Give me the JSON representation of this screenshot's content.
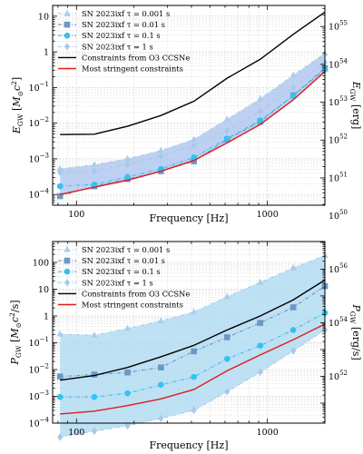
{
  "figure": {
    "background": "#ffffff",
    "colors": {
      "band": "#b9d3f0",
      "band_edge": "#8fb1e0",
      "c0001": "#aacdec",
      "c001": "#6c98c6",
      "c01": "#33c3ee",
      "c1": "#a7c9e8",
      "o3": "#000000",
      "most": "#dd1c1c"
    }
  },
  "chart_data": [
    {
      "type": "line",
      "panel": "top",
      "xlabel": "Frequency [Hz]",
      "ylabel_left": "E_GW [M⊙c²]",
      "ylabel_right": "E_GW [erg]",
      "xscale": "log",
      "yscale": "log",
      "xlim": [
        75,
        2000
      ],
      "ylim": [
        5e-05,
        20
      ],
      "ylim_right": [
        1.9e+50,
        3.6e+55
      ],
      "x_ticks": [
        100,
        1000
      ],
      "x_tick_labels": [
        "100",
        "1000"
      ],
      "y_ticks_left": [
        0.0001,
        0.001,
        0.01,
        0.1,
        1,
        10
      ],
      "y_tick_labels_left": [
        "10^-4",
        "10^-3",
        "10^-2",
        "10^-1",
        "1",
        "10"
      ],
      "y_ticks_right": [
        1e+50,
        1e+51,
        1e+52,
        1e+53,
        1e+54,
        1e+55
      ],
      "y_tick_labels_right": [
        "10^50",
        "10^51",
        "10^52",
        "10^53",
        "10^54",
        "10^55"
      ],
      "grid": true,
      "legend_position": "top-left",
      "x": [
        82,
        124,
        185,
        277,
        412,
        615,
        917,
        1366,
        2000
      ],
      "band": {
        "lower": [
          0.0001,
          0.00016,
          0.00025,
          0.00045,
          0.0009,
          0.0028,
          0.0092,
          0.045,
          0.28
        ],
        "upper": [
          0.00052,
          0.00068,
          0.001,
          0.0017,
          0.0035,
          0.0128,
          0.048,
          0.22,
          0.9
        ]
      },
      "series": [
        {
          "name": "SN 2023ixf τ = 0.001 s",
          "marker": "triangle",
          "values": [
            0.00052,
            0.00068,
            0.001,
            0.0017,
            0.0035,
            0.0128,
            0.048,
            0.22,
            0.9
          ]
        },
        {
          "name": "SN 2023ixf τ = 0.01 s",
          "marker": "square",
          "values": [
            9e-05,
            0.00017,
            0.00027,
            0.00045,
            0.00085,
            0.0035,
            0.011,
            0.06,
            0.35
          ]
        },
        {
          "name": "SN 2023ixf τ = 0.1 s",
          "marker": "circle",
          "values": [
            0.00017,
            0.00019,
            0.00031,
            0.00052,
            0.0011,
            0.0037,
            0.012,
            0.058,
            0.32
          ]
        },
        {
          "name": "SN 2023ixf τ = 1 s",
          "marker": "diamond",
          "values": [
            0.00042,
            0.00045,
            0.0007,
            0.0012,
            0.0024,
            0.0062,
            0.021,
            0.098,
            0.51
          ]
        },
        {
          "name": "Constraints from O3 CCSNe",
          "marker": "none",
          "values": [
            0.0048,
            0.0049,
            0.0082,
            0.0164,
            0.041,
            0.182,
            0.62,
            3.1,
            13
          ]
        },
        {
          "name": "Most stringent constraints",
          "marker": "none",
          "values": [
            0.0001,
            0.00016,
            0.00025,
            0.00045,
            0.0009,
            0.0028,
            0.0092,
            0.045,
            0.28
          ]
        }
      ]
    },
    {
      "type": "line",
      "panel": "bottom",
      "xlabel": "Frequency [Hz]",
      "ylabel_left": "P_GW [M⊙c²/s]",
      "ylabel_right": "P_GW [erg/s]",
      "xscale": "log",
      "yscale": "log",
      "xlim": [
        75,
        2000
      ],
      "ylim": [
        0.0001,
        600
      ],
      "ylim_right": [
        1.8e+50,
        1.07e+57
      ],
      "x_ticks": [
        100,
        1000
      ],
      "x_tick_labels": [
        "100",
        "1000"
      ],
      "y_ticks_left": [
        0.0001,
        0.001,
        0.01,
        0.1,
        1,
        10,
        100
      ],
      "y_tick_labels_left": [
        "10^-4",
        "10^-3",
        "10^-2",
        "10^-1",
        "1",
        "10",
        "100"
      ],
      "y_ticks_right": [
        1e+52,
        1e+54,
        1e+56
      ],
      "y_tick_labels_right": [
        "10^52",
        "10^54",
        "10^56"
      ],
      "grid": true,
      "legend_position": "top-left",
      "x": [
        82,
        124,
        185,
        277,
        412,
        615,
        917,
        1366,
        2000
      ],
      "band": {
        "lower": [
          3e-05,
          5e-05,
          8e-05,
          0.00015,
          0.0003,
          0.0015,
          0.008,
          0.05,
          0.3
        ],
        "upper": [
          0.21,
          0.19,
          0.34,
          0.65,
          1.4,
          5.2,
          18,
          62,
          180
        ]
      },
      "series": [
        {
          "name": "SN 2023ixf τ = 0.001 s",
          "marker": "triangle",
          "values": [
            0.21,
            0.19,
            0.34,
            0.65,
            1.4,
            5.2,
            18,
            62,
            180
          ]
        },
        {
          "name": "SN 2023ixf τ = 0.01 s",
          "marker": "square",
          "values": [
            0.0055,
            0.0065,
            0.0078,
            0.012,
            0.048,
            0.16,
            0.55,
            2.1,
            13
          ]
        },
        {
          "name": "SN 2023ixf τ = 0.1 s",
          "marker": "circle",
          "values": [
            0.00095,
            0.00095,
            0.0013,
            0.0027,
            0.0053,
            0.025,
            0.078,
            0.3,
            1.3
          ]
        },
        {
          "name": "SN 2023ixf τ = 1 s",
          "marker": "diamond",
          "values": [
            3e-05,
            5e-05,
            8e-05,
            0.00015,
            0.0003,
            0.0015,
            0.008,
            0.05,
            0.3
          ]
        },
        {
          "name": "Constraints from O3 CCSNe",
          "marker": "none",
          "values": [
            0.004,
            0.006,
            0.012,
            0.03,
            0.08,
            0.3,
            1.0,
            4.0,
            22
          ]
        },
        {
          "name": "Most stringent constraints",
          "marker": "none",
          "values": [
            0.00022,
            0.00028,
            0.00045,
            0.0008,
            0.0018,
            0.009,
            0.035,
            0.13,
            0.5
          ]
        }
      ]
    }
  ]
}
